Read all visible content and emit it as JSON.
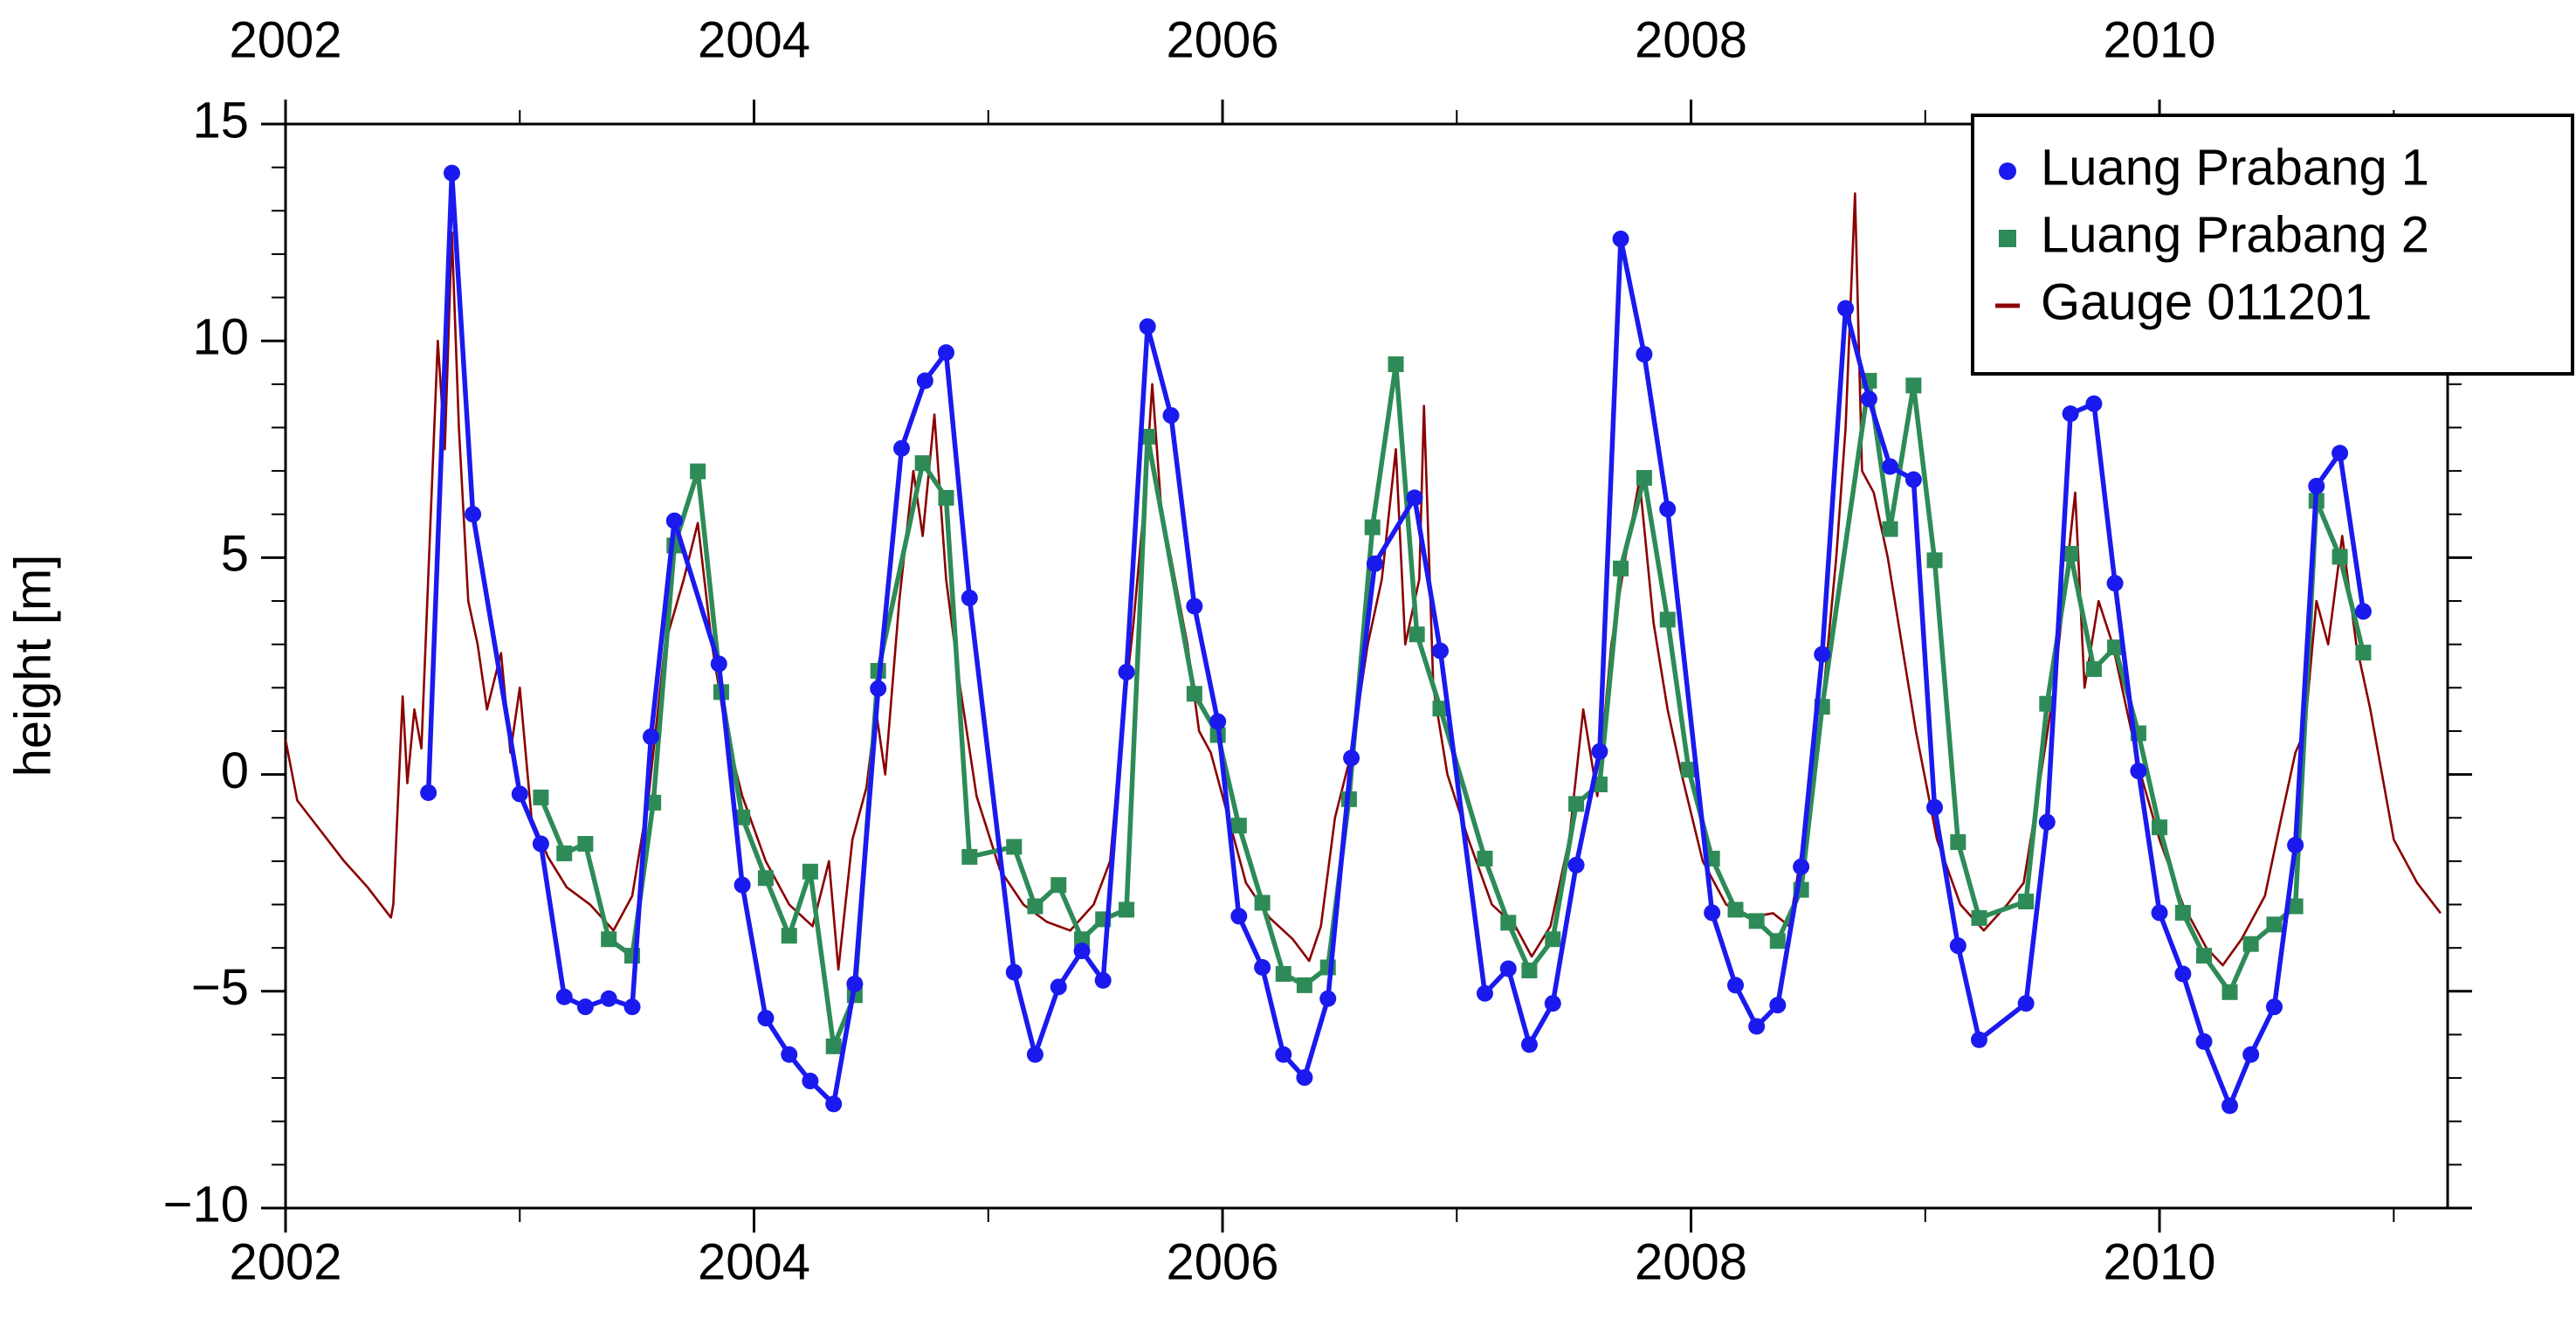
{
  "chart_data": {
    "type": "line",
    "ylabel": "height [m]",
    "xlim": [
      2002,
      2011.23
    ],
    "xticks": [
      2002,
      2004,
      2006,
      2008,
      2010
    ],
    "ylim": [
      -10,
      15
    ],
    "yticks": [
      {
        "value": -10,
        "label": "−10"
      },
      {
        "value": -5,
        "label": "−5"
      },
      0,
      5,
      10,
      15
    ],
    "legend": "upper right",
    "series": [
      {
        "name": "Luang Prabang 1",
        "color": "#1a1aee",
        "marker": "circle",
        "x": [
          2002.61,
          2002.71,
          2002.8,
          2003.0,
          2003.09,
          2003.19,
          2003.28,
          2003.38,
          2003.48,
          2003.56,
          2003.66,
          2003.85,
          2003.95,
          2004.05,
          2004.15,
          2004.24,
          2004.34,
          2004.43,
          2004.53,
          2004.63,
          2004.73,
          2004.82,
          2004.92,
          2005.11,
          2005.2,
          2005.3,
          2005.4,
          2005.49,
          2005.59,
          2005.68,
          2005.78,
          2005.88,
          2005.98,
          2006.07,
          2006.17,
          2006.26,
          2006.35,
          2006.45,
          2006.55,
          2006.65,
          2006.82,
          2006.93,
          2007.12,
          2007.22,
          2007.31,
          2007.41,
          2007.51,
          2007.61,
          2007.7,
          2007.8,
          2007.9,
          2008.09,
          2008.19,
          2008.28,
          2008.37,
          2008.47,
          2008.56,
          2008.66,
          2008.76,
          2008.85,
          2008.95,
          2009.04,
          2009.14,
          2009.23,
          2009.43,
          2009.52,
          2009.62,
          2009.72,
          2009.81,
          2009.91,
          2010.0,
          2010.1,
          2010.19,
          2010.3,
          2010.39,
          2010.49,
          2010.58,
          2010.67,
          2010.77,
          2010.87
        ],
        "values": [
          -0.42,
          13.87,
          6.0,
          -0.45,
          -1.6,
          -5.13,
          -5.36,
          -5.17,
          -5.36,
          0.87,
          5.85,
          2.55,
          -2.55,
          -5.62,
          -6.46,
          -7.07,
          -7.6,
          -4.83,
          1.98,
          7.52,
          9.08,
          9.73,
          4.07,
          -4.56,
          -6.46,
          -4.9,
          -4.07,
          -4.75,
          2.36,
          10.33,
          8.28,
          3.88,
          1.22,
          -3.27,
          -4.45,
          -6.46,
          -6.99,
          -5.17,
          0.38,
          4.86,
          6.38,
          2.85,
          -5.05,
          -4.48,
          -6.23,
          -5.28,
          -2.09,
          0.53,
          12.35,
          9.69,
          6.12,
          -3.19,
          -4.86,
          -5.81,
          -5.32,
          -2.13,
          2.77,
          10.75,
          8.66,
          7.1,
          6.8,
          -0.76,
          -3.95,
          -6.12,
          -5.28,
          -1.1,
          8.32,
          8.55,
          4.41,
          0.08,
          -3.19,
          -4.6,
          -6.16,
          -7.64,
          -6.46,
          -5.36,
          -1.63,
          6.65,
          7.41,
          3.76
        ]
      },
      {
        "name": "Luang Prabang 2",
        "color": "#2e8b57",
        "marker": "square",
        "x": [
          2003.09,
          2003.19,
          2003.28,
          2003.38,
          2003.48,
          2003.57,
          2003.66,
          2003.76,
          2003.86,
          2003.95,
          2004.05,
          2004.15,
          2004.24,
          2004.34,
          2004.43,
          2004.53,
          2004.72,
          2004.82,
          2004.92,
          2005.11,
          2005.2,
          2005.3,
          2005.4,
          2005.49,
          2005.59,
          2005.68,
          2005.88,
          2005.98,
          2006.07,
          2006.17,
          2006.26,
          2006.35,
          2006.45,
          2006.54,
          2006.64,
          2006.74,
          2006.83,
          2006.93,
          2007.12,
          2007.22,
          2007.31,
          2007.41,
          2007.51,
          2007.61,
          2007.7,
          2007.8,
          2007.9,
          2007.99,
          2008.09,
          2008.19,
          2008.28,
          2008.37,
          2008.47,
          2008.56,
          2008.76,
          2008.85,
          2008.95,
          2009.04,
          2009.14,
          2009.23,
          2009.43,
          2009.52,
          2009.62,
          2009.72,
          2009.81,
          2009.91,
          2010.0,
          2010.1,
          2010.19,
          2010.3,
          2010.39,
          2010.49,
          2010.58,
          2010.67,
          2010.77,
          2010.87
        ],
        "values": [
          -0.53,
          -1.82,
          -1.6,
          -3.8,
          -4.18,
          -0.65,
          5.28,
          6.99,
          1.9,
          -0.99,
          -2.39,
          -3.72,
          -2.24,
          -6.27,
          -5.09,
          2.39,
          7.18,
          6.38,
          -1.9,
          -1.67,
          -3.04,
          -2.55,
          -3.8,
          -3.34,
          -3.12,
          7.79,
          1.86,
          0.91,
          -1.18,
          -2.96,
          -4.6,
          -4.86,
          -4.45,
          -0.57,
          5.7,
          9.46,
          3.23,
          1.52,
          -1.94,
          -3.42,
          -4.52,
          -3.8,
          -0.68,
          -0.23,
          4.75,
          6.84,
          3.57,
          0.11,
          -1.94,
          -3.12,
          -3.38,
          -3.84,
          -2.66,
          1.56,
          9.08,
          5.66,
          8.97,
          4.94,
          -1.56,
          -3.31,
          -2.93,
          1.63,
          5.09,
          2.43,
          2.93,
          0.95,
          -1.22,
          -3.19,
          -4.18,
          -5.02,
          -3.91,
          -3.46,
          -3.04,
          6.31,
          5.02,
          2.81
        ]
      },
      {
        "name": "Gauge 011201",
        "color": "#8b0000",
        "marker": "none",
        "x": [
          2002.0,
          2002.05,
          2002.15,
          2002.25,
          2002.35,
          2002.45,
          2002.46,
          2002.5,
          2002.52,
          2002.55,
          2002.58,
          2002.62,
          2002.65,
          2002.68,
          2002.71,
          2002.74,
          2002.78,
          2002.82,
          2002.86,
          2002.92,
          2002.96,
          2003.0,
          2003.05,
          2003.12,
          2003.2,
          2003.3,
          2003.4,
          2003.48,
          2003.55,
          2003.62,
          2003.7,
          2003.76,
          2003.82,
          2003.88,
          2003.95,
          2004.05,
          2004.15,
          2004.25,
          2004.32,
          2004.36,
          2004.42,
          2004.48,
          2004.52,
          2004.56,
          2004.62,
          2004.68,
          2004.72,
          2004.77,
          2004.82,
          2004.88,
          2004.95,
          2005.05,
          2005.15,
          2005.25,
          2005.35,
          2005.45,
          2005.52,
          2005.57,
          2005.62,
          2005.67,
          2005.7,
          2005.74,
          2005.78,
          2005.85,
          2005.9,
          2005.95,
          2006.0,
          2006.1,
          2006.2,
          2006.3,
          2006.37,
          2006.42,
          2006.48,
          2006.55,
          2006.62,
          2006.68,
          2006.74,
          2006.78,
          2006.84,
          2006.86,
          2006.9,
          2006.96,
          2007.05,
          2007.15,
          2007.25,
          2007.32,
          2007.4,
          2007.48,
          2007.54,
          2007.6,
          2007.66,
          2007.72,
          2007.78,
          2007.84,
          2007.9,
          2007.96,
          2008.05,
          2008.15,
          2008.25,
          2008.35,
          2008.42,
          2008.48,
          2008.55,
          2008.62,
          2008.66,
          2008.7,
          2008.73,
          2008.78,
          2008.84,
          2008.9,
          2008.96,
          2009.05,
          2009.15,
          2009.25,
          2009.35,
          2009.42,
          2009.48,
          2009.55,
          2009.6,
          2009.64,
          2009.68,
          2009.74,
          2009.8,
          2009.86,
          2009.92,
          2010.0,
          2010.1,
          2010.2,
          2010.27,
          2010.35,
          2010.45,
          2010.52,
          2010.58,
          2010.62,
          2010.67,
          2010.72,
          2010.78,
          2010.84,
          2010.9,
          2010.95,
          2011.0,
          2011.1,
          2011.2
        ],
        "values": [
          0.8,
          -0.6,
          -1.3,
          -2.0,
          -2.6,
          -3.3,
          -3.0,
          1.8,
          -0.2,
          1.5,
          0.6,
          6.0,
          10.0,
          7.5,
          12.5,
          8.0,
          4.0,
          3.0,
          1.5,
          2.8,
          0.5,
          2.0,
          -1.0,
          -1.9,
          -2.6,
          -3.0,
          -3.6,
          -2.8,
          -0.5,
          3.0,
          4.5,
          5.8,
          3.0,
          1.0,
          -0.5,
          -2.0,
          -3.0,
          -3.5,
          -2.0,
          -4.5,
          -1.5,
          -0.3,
          1.5,
          0.0,
          4.0,
          7.0,
          5.5,
          8.3,
          4.5,
          2.0,
          -0.5,
          -2.2,
          -3.0,
          -3.4,
          -3.6,
          -3.0,
          -2.0,
          1.0,
          3.5,
          6.5,
          9.0,
          6.0,
          5.0,
          3.0,
          1.0,
          0.5,
          -0.5,
          -2.5,
          -3.3,
          -3.8,
          -4.3,
          -3.5,
          -1.0,
          0.5,
          3.0,
          4.5,
          7.5,
          3.0,
          4.5,
          8.5,
          2.0,
          0.0,
          -1.5,
          -3.0,
          -3.5,
          -4.2,
          -3.5,
          -1.5,
          1.5,
          -0.5,
          3.0,
          5.0,
          6.8,
          3.5,
          1.5,
          0.0,
          -2.0,
          -3.0,
          -3.3,
          -3.2,
          -3.5,
          -1.5,
          1.0,
          5.0,
          8.0,
          13.4,
          7.0,
          6.5,
          5.0,
          3.0,
          1.0,
          -1.5,
          -3.0,
          -3.6,
          -3.0,
          -2.5,
          -0.5,
          2.0,
          4.5,
          6.5,
          2.0,
          4.0,
          3.0,
          1.5,
          0.0,
          -1.5,
          -3.0,
          -4.0,
          -4.4,
          -3.8,
          -2.8,
          -1.0,
          0.5,
          1.0,
          4.0,
          3.0,
          5.5,
          3.0,
          1.5,
          0.0,
          -1.5,
          -2.5,
          -3.2
        ]
      }
    ]
  }
}
